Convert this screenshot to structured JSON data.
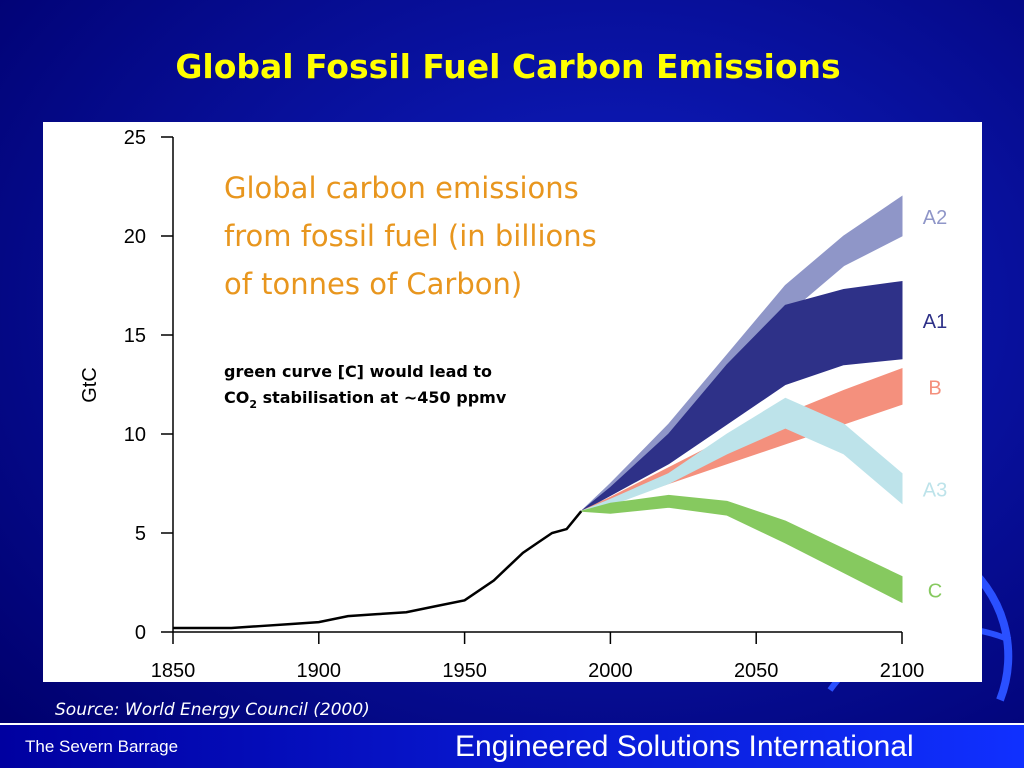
{
  "slide": {
    "title": "Global Fossil Fuel Carbon Emissions",
    "source": "Source: World Energy Council (2000)",
    "footer_left": "The Severn Barrage",
    "footer_right": "Engineered Solutions International"
  },
  "chart_data": {
    "type": "area",
    "y_label": "GtC",
    "heading": [
      "Global carbon emissions",
      "from fossil fuel (in billions",
      "of tonnes of Carbon)"
    ],
    "note": {
      "line1": "green curve [C] would lead to",
      "line2_prefix": "CO",
      "line2_sub": "2",
      "line2_rest": " stabilisation at ~450 ppmv"
    },
    "xlim": [
      1850,
      2100
    ],
    "ylim": [
      0,
      25
    ],
    "xticks": [
      1850,
      1900,
      1950,
      2000,
      2050,
      2100
    ],
    "yticks": [
      0,
      5,
      10,
      15,
      20,
      25
    ],
    "history": {
      "color": "#000000",
      "x": [
        1850,
        1860,
        1870,
        1880,
        1890,
        1900,
        1910,
        1920,
        1930,
        1940,
        1950,
        1960,
        1970,
        1975,
        1980,
        1985,
        1990
      ],
      "values": [
        0.2,
        0.2,
        0.2,
        0.3,
        0.4,
        0.5,
        0.8,
        0.9,
        1.0,
        1.3,
        1.6,
        2.6,
        4.0,
        4.5,
        5.0,
        5.2,
        6.1
      ]
    },
    "scenario_x": [
      1990,
      2000,
      2020,
      2040,
      2060,
      2080,
      2100
    ],
    "bands": [
      {
        "name": "A2",
        "color": "#8f96c8",
        "low": [
          6.1,
          7.0,
          9.5,
          12.5,
          16,
          18.5,
          20.0
        ],
        "high": [
          6.1,
          7.5,
          10.5,
          14,
          17.5,
          20,
          22
        ]
      },
      {
        "name": "A1",
        "color": "#2e3188",
        "low": [
          6.1,
          6.9,
          8.5,
          10.5,
          12.5,
          13.5,
          13.8
        ],
        "high": [
          6.1,
          7.3,
          10,
          13.5,
          16.5,
          17.3,
          17.7
        ]
      },
      {
        "name": "B",
        "color": "#f4907d",
        "low": [
          6.1,
          6.5,
          7.5,
          8.5,
          9.5,
          10.5,
          11.5
        ],
        "high": [
          6.1,
          6.8,
          8.3,
          9.8,
          11,
          12.2,
          13.3
        ]
      },
      {
        "name": "A3",
        "color": "#bde3ea",
        "low": [
          6.1,
          6.4,
          7.5,
          9,
          10.3,
          9,
          6.5
        ],
        "high": [
          6.1,
          6.7,
          8,
          10,
          11.8,
          10.5,
          8.0
        ]
      },
      {
        "name": "C",
        "color": "#86c95f",
        "low": [
          6.1,
          6.0,
          6.3,
          5.9,
          4.5,
          3.0,
          1.5
        ],
        "high": [
          6.1,
          6.5,
          6.9,
          6.6,
          5.6,
          4.2,
          2.8
        ]
      }
    ]
  }
}
